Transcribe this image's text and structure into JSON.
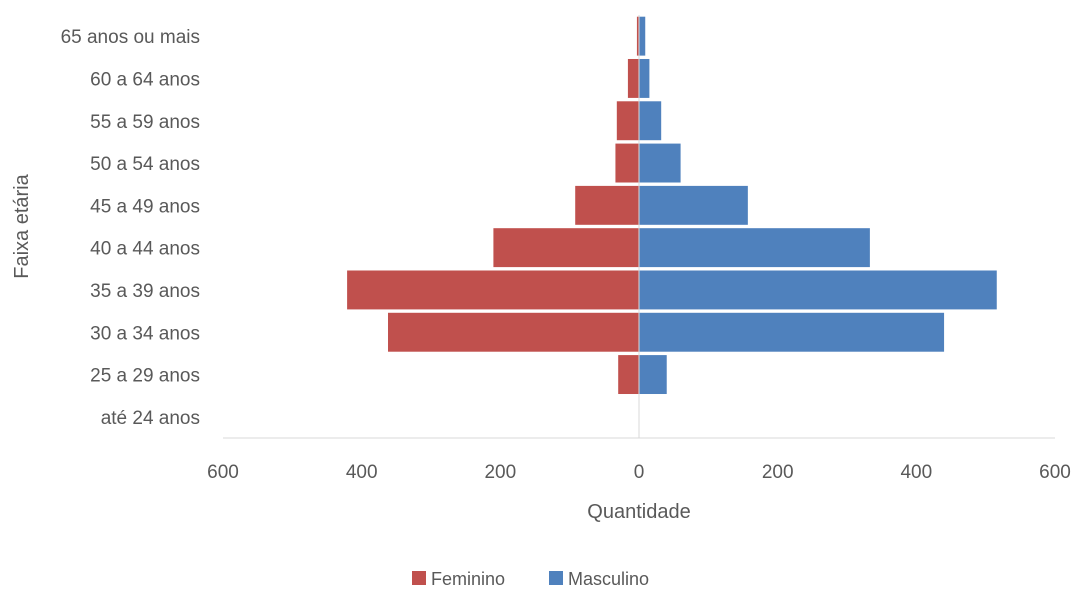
{
  "chart_data": {
    "type": "bar",
    "orientation": "horizontal",
    "title": "",
    "xlabel": "Quantidade",
    "ylabel": "Faixa etária",
    "categories": [
      "até 24 anos",
      "25 a 29 anos",
      "30 a 34 anos",
      "35 a 39 anos",
      "40 a 44 anos",
      "45 a 49 anos",
      "50 a 54 anos",
      "55 a 59 anos",
      "60 a 64 anos",
      "65 anos ou mais"
    ],
    "series": [
      {
        "name": "Feminino",
        "color": "#c0504d",
        "values": [
          0,
          30,
          362,
          421,
          210,
          92,
          34,
          32,
          16,
          3
        ],
        "direction": "left"
      },
      {
        "name": "Masculino",
        "color": "#4f81bd",
        "values": [
          0,
          40,
          440,
          516,
          333,
          157,
          60,
          32,
          15,
          9
        ],
        "direction": "right"
      }
    ],
    "xlim": [
      -600,
      600
    ],
    "xticks": [
      -600,
      -400,
      -200,
      0,
      200,
      400,
      600
    ],
    "xtick_labels": [
      "600",
      "400",
      "200",
      "0",
      "200",
      "400",
      "600"
    ],
    "grid": false,
    "legend_position": "bottom"
  }
}
